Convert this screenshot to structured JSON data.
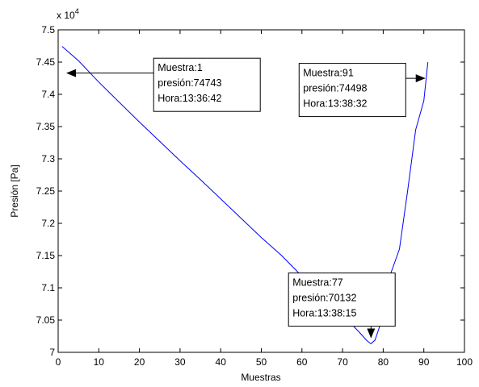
{
  "chart_data": {
    "type": "line",
    "title": "",
    "xlabel": "Muestras",
    "ylabel": "Presión [Pa]",
    "xlim": [
      0,
      100
    ],
    "ylim": [
      70000,
      75000
    ],
    "x_ticks": [
      0,
      10,
      20,
      30,
      40,
      50,
      60,
      70,
      80,
      90,
      100
    ],
    "y_ticks": [
      70000,
      70500,
      71000,
      71500,
      72000,
      72500,
      73000,
      73500,
      74000,
      74500,
      75000
    ],
    "y_tick_labels": [
      "7",
      "7.05",
      "7.1",
      "7.15",
      "7.2",
      "7.25",
      "7.3",
      "7.35",
      "7.4",
      "7.45",
      "7.5"
    ],
    "y_multiplier_base": "x 10",
    "y_multiplier_exp": "4",
    "grid": false,
    "series": [
      {
        "color": "#0000ff",
        "x": [
          1,
          5,
          10,
          15,
          20,
          25,
          30,
          35,
          40,
          45,
          50,
          55,
          60,
          65,
          70,
          74,
          76,
          77,
          78,
          79,
          80,
          82,
          84,
          86,
          88,
          90,
          91
        ],
        "y": [
          74743,
          74520,
          74190,
          73880,
          73570,
          73270,
          72970,
          72680,
          72380,
          72080,
          71780,
          71500,
          71180,
          70890,
          70580,
          70320,
          70180,
          70132,
          70190,
          70380,
          70650,
          71250,
          71600,
          72500,
          73450,
          73900,
          74498
        ]
      }
    ],
    "annotations": [
      {
        "lines": [
          "Muestra:1",
          "presión:74743",
          "Hora:13:36:42"
        ],
        "point_x": 1,
        "point_y": 74743,
        "box_x": 23.5,
        "box_y": 74560
      },
      {
        "lines": [
          "Muestra:91",
          "presión:74498",
          "Hora:13:38:32"
        ],
        "point_x": 91,
        "point_y": 74498,
        "box_x": 59.3,
        "box_y": 74480
      },
      {
        "lines": [
          "Muestra:77",
          "presión:70132",
          "Hora:13:38:15"
        ],
        "point_x": 77,
        "point_y": 70132,
        "box_x": 56.7,
        "box_y": 71230
      }
    ]
  }
}
